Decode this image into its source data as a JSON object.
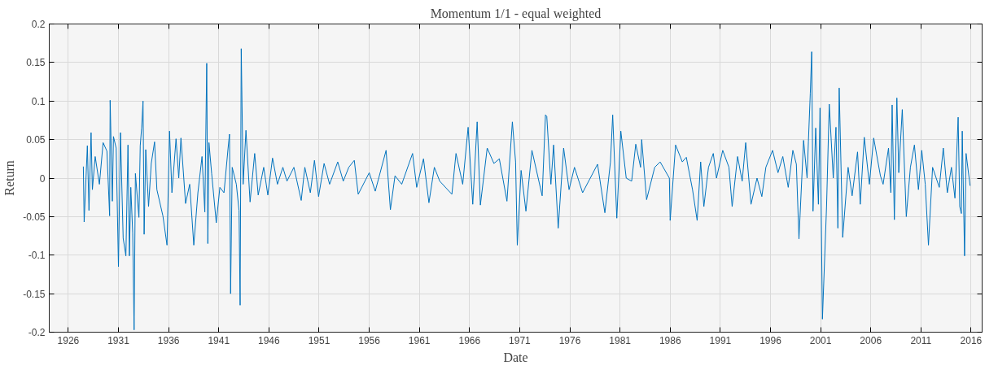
{
  "chart_data": {
    "type": "line",
    "title": "Momentum 1/1 - equal weighted",
    "xlabel": "Date",
    "ylabel": "Return",
    "xlim": [
      1924.1,
      2017.1
    ],
    "ylim": [
      -0.2,
      0.2
    ],
    "xticks": [
      1926,
      1931,
      1936,
      1941,
      1946,
      1951,
      1956,
      1961,
      1966,
      1971,
      1976,
      1981,
      1986,
      1991,
      1996,
      2001,
      2006,
      2011,
      2016
    ],
    "yticks": [
      -0.2,
      -0.15,
      -0.1,
      -0.05,
      0,
      0.05,
      0.1,
      0.15,
      0.2
    ],
    "grid": true,
    "marker": "none",
    "line_style": "solid",
    "series": [
      {
        "color": "#0072bd",
        "x": [
          1927.5,
          1927.58,
          1927.9,
          1928.06,
          1928.27,
          1928.4,
          1928.68,
          1929.1,
          1929.47,
          1929.85,
          1930.12,
          1930.17,
          1930.39,
          1930.5,
          1930.77,
          1931.0,
          1931.2,
          1931.47,
          1931.74,
          1931.95,
          1932.09,
          1932.23,
          1932.42,
          1932.56,
          1932.69,
          1933.04,
          1933.17,
          1933.31,
          1933.45,
          1933.56,
          1933.72,
          1934.0,
          1934.27,
          1934.6,
          1934.83,
          1935.43,
          1935.84,
          1936.09,
          1936.33,
          1936.74,
          1937.01,
          1937.23,
          1937.69,
          1938.1,
          1938.51,
          1938.92,
          1939.33,
          1939.61,
          1939.8,
          1939.91,
          1940.02,
          1940.29,
          1940.75,
          1941.11,
          1941.52,
          1941.93,
          1942.07,
          1942.18,
          1942.34,
          1942.75,
          1943.02,
          1943.13,
          1943.24,
          1943.43,
          1943.71,
          1944.12,
          1944.58,
          1944.93,
          1945.48,
          1945.89,
          1946.36,
          1946.85,
          1947.39,
          1947.8,
          1948.49,
          1949.22,
          1949.58,
          1950.13,
          1950.54,
          1950.95,
          1951.5,
          1952.05,
          1952.86,
          1953.41,
          1953.96,
          1954.51,
          1954.9,
          1956.0,
          1956.6,
          1957.68,
          1958.11,
          1958.57,
          1959.24,
          1960.32,
          1960.73,
          1961.41,
          1961.95,
          1962.49,
          1963.03,
          1964.24,
          1964.65,
          1965.32,
          1965.86,
          1966.32,
          1966.76,
          1967.08,
          1967.76,
          1968.43,
          1968.97,
          1969.73,
          1970.27,
          1970.59,
          1970.76,
          1971.14,
          1971.62,
          1972.22,
          1973.24,
          1973.57,
          1973.7,
          1974.11,
          1974.38,
          1974.84,
          1975.38,
          1975.92,
          1976.46,
          1977.27,
          1978.76,
          1979.49,
          1980.05,
          1980.27,
          1980.68,
          1981.08,
          1981.62,
          1982.16,
          1982.57,
          1983.05,
          1983.16,
          1983.65,
          1984.46,
          1985.0,
          1985.92,
          1986.0,
          1986.54,
          1987.21,
          1987.61,
          1988.23,
          1988.69,
          1989.04,
          1989.36,
          1989.82,
          1990.3,
          1990.62,
          1991.24,
          1991.86,
          1992.18,
          1992.72,
          1993.18,
          1993.53,
          1994.06,
          1994.66,
          1995.14,
          1995.54,
          1996.21,
          1996.75,
          1997.23,
          1997.77,
          1998.23,
          1998.58,
          1998.84,
          1999.3,
          1999.65,
          1999.78,
          1999.97,
          2000.11,
          2000.24,
          2000.51,
          2000.78,
          2000.94,
          2001.18,
          2001.59,
          2001.86,
          2002.26,
          2002.53,
          2002.66,
          2002.72,
          2002.85,
          2003.2,
          2003.74,
          2004.14,
          2004.68,
          2004.95,
          2005.35,
          2005.86,
          2006.29,
          2006.96,
          2007.23,
          2007.77,
          2008.0,
          2008.13,
          2008.35,
          2008.6,
          2008.79,
          2009.14,
          2009.54,
          2009.95,
          2010.35,
          2010.75,
          2011.08,
          2011.43,
          2011.75,
          2012.16,
          2012.83,
          2013.23,
          2013.63,
          2014.04,
          2014.39,
          2014.71,
          2014.87,
          2015.03,
          2015.12,
          2015.35,
          2015.5,
          2015.9
        ],
        "values": [
          0.015,
          -0.057,
          0.042,
          -0.042,
          0.059,
          -0.015,
          0.028,
          -0.008,
          0.046,
          0.035,
          -0.049,
          0.101,
          -0.03,
          0.054,
          0.039,
          -0.115,
          0.059,
          -0.078,
          -0.101,
          0.043,
          -0.101,
          -0.012,
          -0.071,
          -0.197,
          0.006,
          -0.051,
          0.042,
          0.065,
          0.1,
          -0.073,
          0.037,
          -0.037,
          0.019,
          0.047,
          -0.015,
          -0.049,
          -0.087,
          0.061,
          -0.019,
          0.051,
          0,
          0.052,
          -0.033,
          -0.008,
          -0.087,
          -0.019,
          0.028,
          -0.044,
          0.149,
          -0.085,
          0.046,
          0.006,
          -0.058,
          -0.012,
          -0.019,
          0.039,
          0.057,
          -0.15,
          0.014,
          -0.008,
          -0.042,
          -0.165,
          0.168,
          -0.008,
          0.062,
          -0.031,
          0.032,
          -0.022,
          0.014,
          -0.022,
          0.026,
          -0.008,
          0.014,
          -0.004,
          0.014,
          -0.029,
          0.014,
          -0.019,
          0.023,
          -0.024,
          0.019,
          -0.008,
          0.021,
          -0.004,
          0.014,
          0.023,
          -0.021,
          0.007,
          -0.017,
          0.036,
          -0.041,
          0.003,
          -0.008,
          0.032,
          -0.012,
          0.025,
          -0.032,
          0.014,
          -0.004,
          -0.021,
          0.032,
          -0.008,
          0.066,
          -0.034,
          0.073,
          -0.035,
          0.039,
          0.019,
          0.025,
          -0.03,
          0.073,
          0.021,
          -0.087,
          0.01,
          -0.043,
          0.036,
          -0.023,
          0.082,
          0.08,
          -0.008,
          0.043,
          -0.065,
          0.039,
          -0.015,
          0.014,
          -0.019,
          0.018,
          -0.045,
          0.021,
          0.082,
          -0.052,
          0.061,
          0,
          -0.004,
          0.044,
          0.014,
          0.05,
          -0.028,
          0.014,
          0.021,
          0,
          -0.055,
          0.043,
          0.021,
          0.027,
          -0.015,
          -0.055,
          0.021,
          -0.037,
          0.014,
          0.032,
          0,
          0.036,
          0.014,
          -0.037,
          0.028,
          -0.004,
          0.046,
          -0.034,
          0,
          -0.024,
          0.014,
          0.036,
          0.007,
          0.028,
          -0.012,
          0.036,
          0.018,
          -0.079,
          0.049,
          0,
          0.047,
          0.11,
          0.164,
          -0.043,
          0.065,
          -0.034,
          0.091,
          -0.183,
          -0.037,
          0.096,
          0,
          0.066,
          -0.019,
          -0.065,
          0.117,
          -0.077,
          0.014,
          -0.023,
          0.034,
          -0.034,
          0.053,
          -0.008,
          0.052,
          0.003,
          -0.008,
          0.039,
          -0.019,
          0.095,
          -0.054,
          0.104,
          0.007,
          0.089,
          -0.05,
          0.014,
          0.043,
          -0.015,
          0.036,
          -0.008,
          -0.087,
          0.014,
          -0.012,
          0.039,
          -0.019,
          0.014,
          -0.026,
          0.079,
          -0.037,
          -0.046,
          0.061,
          -0.101,
          0.032,
          -0.01
        ]
      }
    ]
  }
}
